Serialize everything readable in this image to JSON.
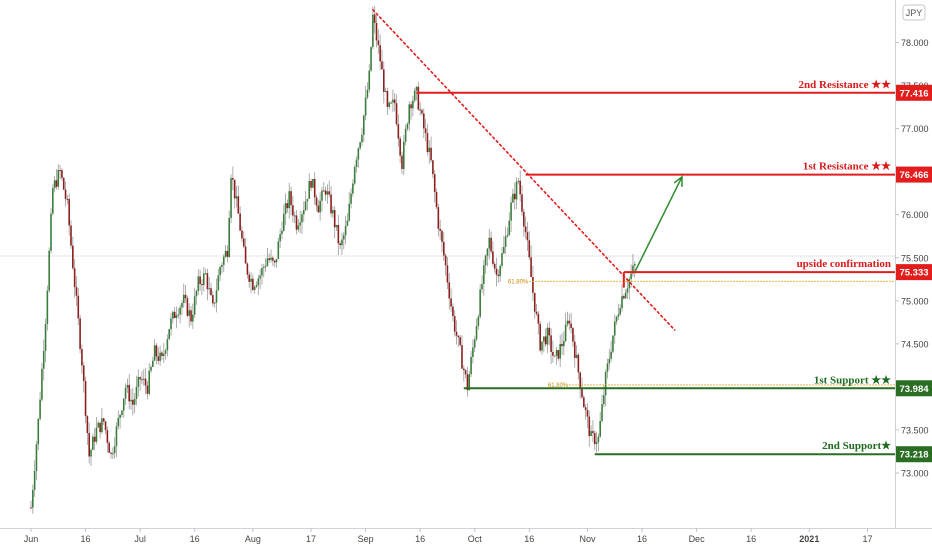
{
  "currency_label": "JPY",
  "chart_data": {
    "type": "candlestick",
    "title": "",
    "y_ticks": [
      73.0,
      73.5,
      74.0,
      74.5,
      75.0,
      75.5,
      76.0,
      76.5,
      77.0,
      77.5,
      78.0
    ],
    "y_tick_labels": [
      "73.000",
      "73.500",
      "74.000",
      "74.500",
      "75.000",
      "75.500",
      "76.000",
      "76.500",
      "77.000",
      "77.500",
      "78.000"
    ],
    "ylim": [
      72.6,
      78.4
    ],
    "x_ticks": [
      {
        "label": "Jun",
        "day": 0
      },
      {
        "label": "16",
        "day": 15
      },
      {
        "label": "Jul",
        "day": 30
      },
      {
        "label": "16",
        "day": 45
      },
      {
        "label": "Aug",
        "day": 61
      },
      {
        "label": "17",
        "day": 77
      },
      {
        "label": "Sep",
        "day": 92
      },
      {
        "label": "16",
        "day": 107
      },
      {
        "label": "Oct",
        "day": 122
      },
      {
        "label": "16",
        "day": 137
      },
      {
        "label": "Nov",
        "day": 153
      },
      {
        "label": "16",
        "day": 168
      },
      {
        "label": "Dec",
        "day": 183
      },
      {
        "label": "16",
        "day": 198
      },
      {
        "label": "2021",
        "day": 214
      },
      {
        "label": "17",
        "day": 230
      }
    ],
    "xlim": [
      -1,
      245
    ],
    "price_path": [
      [
        0,
        72.6
      ],
      [
        2,
        73.6
      ],
      [
        4,
        74.8
      ],
      [
        6,
        76.3
      ],
      [
        8,
        76.5
      ],
      [
        10,
        76.1
      ],
      [
        12,
        75.2
      ],
      [
        14,
        74.3
      ],
      [
        16,
        73.2
      ],
      [
        18,
        73.5
      ],
      [
        20,
        73.6
      ],
      [
        22,
        73.2
      ],
      [
        24,
        73.6
      ],
      [
        26,
        74.0
      ],
      [
        28,
        73.8
      ],
      [
        30,
        74.1
      ],
      [
        32,
        74.0
      ],
      [
        34,
        74.4
      ],
      [
        36,
        74.3
      ],
      [
        38,
        74.7
      ],
      [
        40,
        74.9
      ],
      [
        42,
        75.0
      ],
      [
        44,
        74.8
      ],
      [
        46,
        75.2
      ],
      [
        48,
        75.3
      ],
      [
        50,
        74.9
      ],
      [
        52,
        75.4
      ],
      [
        54,
        75.6
      ],
      [
        55,
        76.5
      ],
      [
        57,
        76.0
      ],
      [
        59,
        75.4
      ],
      [
        61,
        75.2
      ],
      [
        63,
        75.3
      ],
      [
        65,
        75.5
      ],
      [
        67,
        75.4
      ],
      [
        69,
        75.9
      ],
      [
        71,
        76.2
      ],
      [
        73,
        75.9
      ],
      [
        75,
        76.1
      ],
      [
        77,
        76.4
      ],
      [
        79,
        76.1
      ],
      [
        81,
        76.3
      ],
      [
        83,
        76.0
      ],
      [
        85,
        75.6
      ],
      [
        87,
        75.9
      ],
      [
        89,
        76.6
      ],
      [
        91,
        77.0
      ],
      [
        93,
        77.6
      ],
      [
        94,
        78.3
      ],
      [
        96,
        77.8
      ],
      [
        98,
        77.2
      ],
      [
        100,
        77.3
      ],
      [
        102,
        76.6
      ],
      [
        104,
        77.3
      ],
      [
        106,
        77.4
      ],
      [
        108,
        77.0
      ],
      [
        110,
        76.6
      ],
      [
        112,
        75.9
      ],
      [
        114,
        75.4
      ],
      [
        116,
        74.8
      ],
      [
        118,
        74.4
      ],
      [
        120,
        74.0
      ],
      [
        122,
        74.6
      ],
      [
        124,
        75.2
      ],
      [
        126,
        75.7
      ],
      [
        128,
        75.3
      ],
      [
        130,
        75.6
      ],
      [
        132,
        76.1
      ],
      [
        134,
        76.4
      ],
      [
        136,
        75.8
      ],
      [
        138,
        75.1
      ],
      [
        140,
        74.5
      ],
      [
        142,
        74.6
      ],
      [
        144,
        74.3
      ],
      [
        146,
        74.5
      ],
      [
        148,
        74.8
      ],
      [
        150,
        74.3
      ],
      [
        152,
        73.8
      ],
      [
        154,
        73.4
      ],
      [
        156,
        73.4
      ],
      [
        158,
        74.1
      ],
      [
        160,
        74.6
      ],
      [
        162,
        75.0
      ],
      [
        164,
        75.2
      ],
      [
        166,
        75.4
      ]
    ],
    "horizontal_levels": [
      {
        "label": "2nd Resistance ★★",
        "value": 77.416,
        "badge": "77.416",
        "color": "#e31c1c",
        "kind": "resistance",
        "start_day": 106
      },
      {
        "label": "1st Resistance ★★",
        "value": 76.466,
        "badge": "76.466",
        "color": "#e31c1c",
        "kind": "resistance",
        "start_day": 136
      },
      {
        "label": "upside confirmation",
        "value": 75.333,
        "badge": "75.333",
        "color": "#e31c1c",
        "kind": "resistance",
        "start_day": 163
      },
      {
        "label": "1st Support ★★",
        "value": 73.984,
        "badge": "73.984",
        "color": "#2a6e24",
        "kind": "support",
        "start_day": 119
      },
      {
        "label": "2nd Support★",
        "value": 73.218,
        "badge": "73.218",
        "color": "#2a6e24",
        "kind": "support",
        "start_day": 155
      }
    ],
    "fib_levels": [
      {
        "label": "61.80%",
        "value": 75.225,
        "start_day": 137
      },
      {
        "label": "61.80%",
        "value": 74.024,
        "start_day": 148
      }
    ],
    "trendline": {
      "from": [
        94,
        78.38
      ],
      "to": [
        177,
        74.66
      ],
      "color": "#e31c1c",
      "style": "dotted"
    },
    "projection_arrow": {
      "from": [
        166,
        75.333
      ],
      "to": [
        179,
        76.44
      ],
      "color": "#2e8b2e"
    },
    "current_price_line": 75.52,
    "grid": false
  }
}
